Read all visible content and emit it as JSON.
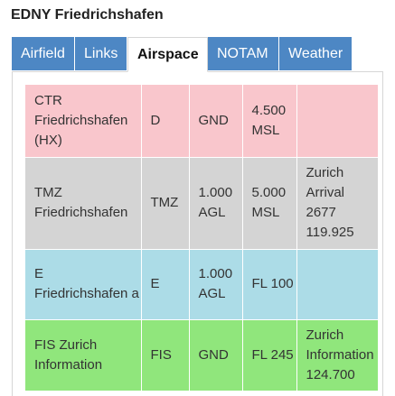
{
  "page": {
    "title": "EDNY Friedrichshafen"
  },
  "tabs": [
    {
      "label": "Airfield"
    },
    {
      "label": "Links"
    },
    {
      "label": "Airspace"
    },
    {
      "label": "NOTAM"
    },
    {
      "label": "Weather"
    }
  ],
  "active_tab": "Airspace",
  "airspace": {
    "rows": [
      {
        "name": "CTR Friedrichshafen (HX)",
        "class": "D",
        "lower": "GND",
        "upper": "4.500 MSL",
        "info": "",
        "color": "#f9c6cc"
      },
      {
        "name": "TMZ Friedrichshafen",
        "class": "TMZ",
        "lower": "1.000 AGL",
        "upper": "5.000 MSL",
        "info": "Zurich Arrival 2677 119.925",
        "color": "#d4d4d4"
      },
      {
        "name": "E Friedrichshafen a",
        "class": "E",
        "lower": "1.000 AGL",
        "upper": "FL 100",
        "info": "",
        "color": "#acdce7"
      },
      {
        "name": "FIS Zurich Information",
        "class": "FIS",
        "lower": "GND",
        "upper": "FL 245",
        "info": "Zurich Information 124.700",
        "color": "#90e67c"
      }
    ]
  },
  "colors": {
    "tab_active_bg": "#ffffff",
    "tab_bg": "#4d87c4"
  }
}
